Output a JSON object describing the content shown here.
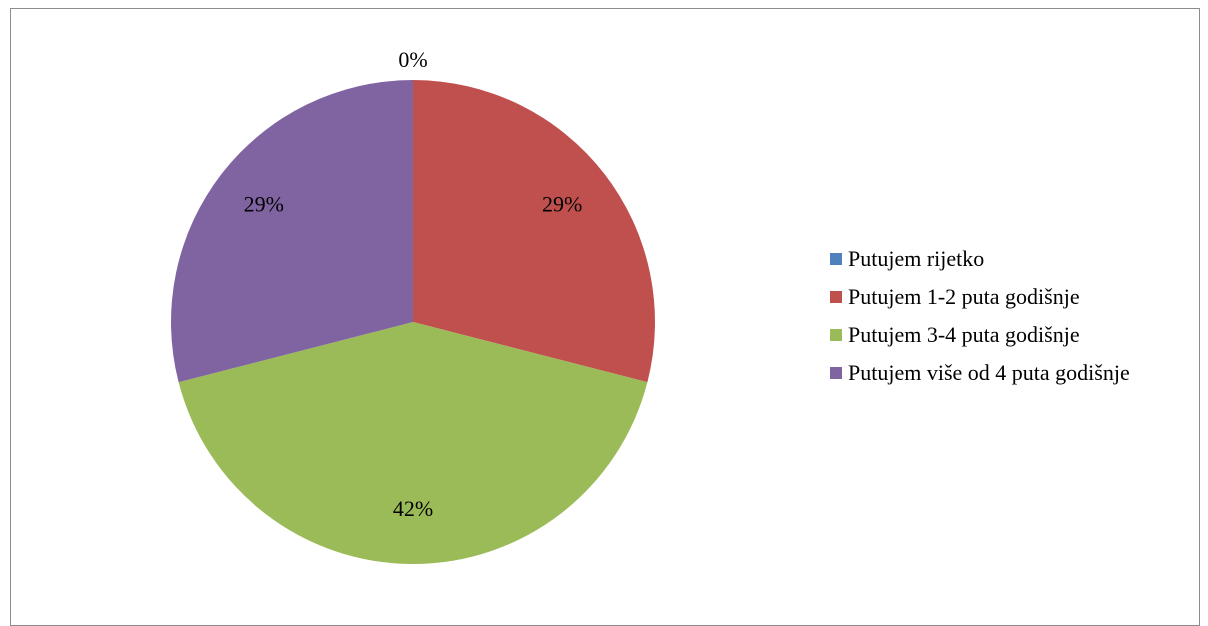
{
  "chart_data": {
    "type": "pie",
    "categories": [
      "Putujem rijetko",
      "Putujem 1-2 puta godišnje",
      "Putujem 3-4 puta godišnje",
      "Putujem više od 4 puta godišnje"
    ],
    "values": [
      0,
      29,
      42,
      29
    ],
    "labels": [
      "0%",
      "29%",
      "42%",
      "29%"
    ],
    "colors": [
      "#4F81BD",
      "#C0504D",
      "#9BBB59",
      "#8064A2"
    ],
    "legend": "right"
  }
}
